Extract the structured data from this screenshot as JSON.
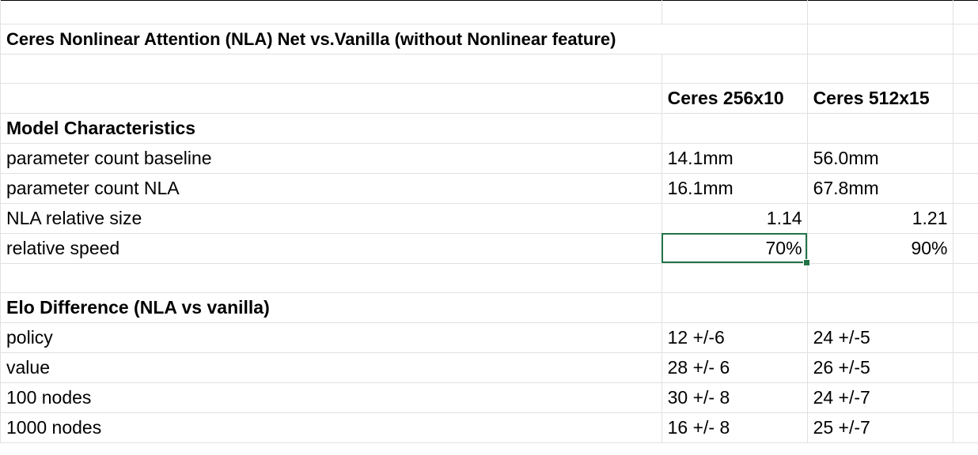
{
  "title": "Ceres Nonlinear Attention (NLA) Net vs.Vanilla (without Nonlinear feature)",
  "columns": [
    "Ceres 256x10",
    "Ceres 512x15"
  ],
  "model_characteristics": {
    "heading": "Model Characteristics",
    "rows": [
      {
        "label": "parameter count baseline",
        "c1": "14.1mm",
        "c2": "56.0mm"
      },
      {
        "label": "parameter count NLA",
        "c1": "16.1mm",
        "c2": "67.8mm"
      },
      {
        "label": "NLA relative size",
        "c1": "1.14",
        "c2": "1.21"
      },
      {
        "label": "relative speed",
        "c1": "70%",
        "c2": "90%"
      }
    ]
  },
  "elo_difference": {
    "heading": "Elo Difference (NLA vs vanilla)",
    "rows": [
      {
        "label": "policy",
        "c1": "12 +/-6",
        "c2": "24 +/-5"
      },
      {
        "label": "value",
        "c1": "28 +/- 6",
        "c2": "26 +/-5"
      },
      {
        "label": "100 nodes",
        "c1": "30 +/- 8",
        "c2": "24 +/-7"
      },
      {
        "label": "1000 nodes",
        "c1": "16 +/- 8",
        "c2": "25 +/-7"
      }
    ]
  },
  "colors": {
    "gridline": "#e1e1e1",
    "selection": "#217346"
  }
}
